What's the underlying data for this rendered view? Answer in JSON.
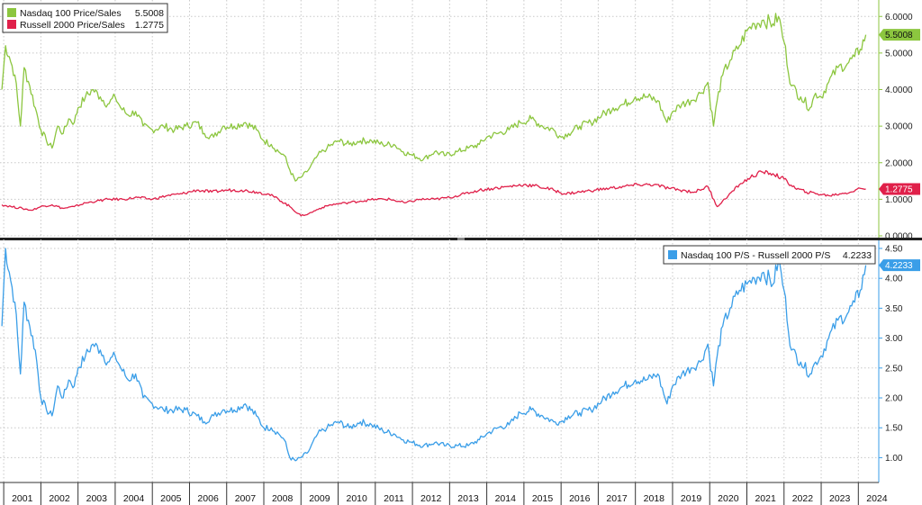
{
  "chart_data": [
    {
      "type": "line",
      "title": "",
      "ylim": [
        0,
        6.4
      ],
      "y_ticks": [
        "0.0000",
        "1.0000",
        "2.0000",
        "3.0000",
        "4.0000",
        "5.0000",
        "6.0000"
      ],
      "y_tick_values": [
        0,
        1,
        2,
        3,
        4,
        5,
        6
      ],
      "grid": true,
      "legend_placement": "top-left",
      "series": [
        {
          "name": "Nasdaq 100 Price/Sales",
          "legend_value": "5.5008",
          "last_label": "5.5008",
          "color": "#8cc63f",
          "x": [
            2000.95,
            2001.05,
            2001.15,
            2001.3,
            2001.45,
            2001.55,
            2001.7,
            2001.85,
            2002.0,
            2002.15,
            2002.3,
            2002.45,
            2002.6,
            2002.75,
            2002.9,
            2003.0,
            2003.2,
            2003.4,
            2003.6,
            2003.8,
            2004.0,
            2004.15,
            2004.35,
            2004.55,
            2004.75,
            2005.0,
            2005.3,
            2005.6,
            2005.9,
            2006.2,
            2006.4,
            2006.65,
            2006.9,
            2007.2,
            2007.5,
            2007.8,
            2008.0,
            2008.2,
            2008.4,
            2008.55,
            2008.7,
            2008.85,
            2009.0,
            2009.2,
            2009.45,
            2009.7,
            2010.0,
            2010.3,
            2010.6,
            2010.9,
            2011.2,
            2011.5,
            2011.75,
            2012.0,
            2012.3,
            2012.6,
            2012.9,
            2013.2,
            2013.5,
            2013.8,
            2014.0,
            2014.3,
            2014.6,
            2014.9,
            2015.2,
            2015.5,
            2015.8,
            2016.0,
            2016.2,
            2016.5,
            2016.8,
            2017.1,
            2017.4,
            2017.7,
            2018.0,
            2018.3,
            2018.6,
            2018.85,
            2019.0,
            2019.25,
            2019.5,
            2019.75,
            2019.95,
            2020.1,
            2020.2,
            2020.35,
            2020.55,
            2020.8,
            2021.0,
            2021.2,
            2021.45,
            2021.7,
            2021.85,
            2022.0,
            2022.2,
            2022.45,
            2022.7,
            2022.85,
            2023.0,
            2023.2,
            2023.45,
            2023.7,
            2023.9,
            2024.05,
            2024.2
          ],
          "values": [
            4.0,
            5.2,
            4.9,
            4.4,
            3.0,
            4.6,
            4.1,
            3.5,
            2.9,
            2.6,
            2.4,
            3.0,
            2.8,
            3.2,
            3.1,
            3.5,
            3.8,
            4.0,
            3.8,
            3.6,
            3.8,
            3.5,
            3.3,
            3.4,
            3.0,
            2.9,
            3.0,
            2.9,
            3.0,
            3.1,
            2.8,
            2.7,
            3.0,
            3.0,
            3.1,
            2.9,
            2.6,
            2.5,
            2.3,
            2.2,
            1.8,
            1.5,
            1.6,
            1.8,
            2.2,
            2.4,
            2.6,
            2.5,
            2.6,
            2.6,
            2.5,
            2.5,
            2.3,
            2.2,
            2.1,
            2.3,
            2.2,
            2.3,
            2.4,
            2.5,
            2.7,
            2.8,
            2.9,
            3.1,
            3.2,
            3.0,
            2.9,
            2.7,
            2.8,
            3.0,
            3.1,
            3.3,
            3.5,
            3.6,
            3.8,
            3.8,
            3.7,
            3.1,
            3.4,
            3.6,
            3.7,
            3.9,
            4.2,
            3.0,
            3.7,
            4.4,
            4.8,
            5.2,
            5.6,
            5.8,
            5.9,
            5.8,
            6.0,
            5.3,
            4.1,
            3.8,
            3.5,
            3.9,
            3.8,
            4.2,
            4.6,
            4.7,
            4.9,
            5.1,
            5.5
          ]
        },
        {
          "name": "Russell 2000 Price/Sales",
          "legend_value": "1.2775",
          "last_label": "1.2775",
          "color": "#e0204a",
          "x": [
            2000.95,
            2001.2,
            2001.5,
            2001.75,
            2002.0,
            2002.3,
            2002.6,
            2002.9,
            2003.2,
            2003.5,
            2003.8,
            2004.2,
            2004.6,
            2005.0,
            2005.4,
            2005.8,
            2006.2,
            2006.6,
            2007.0,
            2007.4,
            2007.8,
            2008.1,
            2008.4,
            2008.7,
            2009.0,
            2009.2,
            2009.5,
            2009.8,
            2010.2,
            2010.6,
            2011.0,
            2011.4,
            2011.8,
            2012.2,
            2012.6,
            2013.0,
            2013.4,
            2013.8,
            2014.2,
            2014.6,
            2015.0,
            2015.4,
            2015.8,
            2016.1,
            2016.5,
            2016.9,
            2017.3,
            2017.7,
            2018.1,
            2018.5,
            2018.9,
            2019.2,
            2019.6,
            2019.95,
            2020.2,
            2020.5,
            2020.8,
            2021.1,
            2021.4,
            2021.7,
            2022.0,
            2022.3,
            2022.6,
            2022.9,
            2023.2,
            2023.5,
            2023.8,
            2024.05,
            2024.2
          ],
          "values": [
            0.85,
            0.8,
            0.75,
            0.7,
            0.8,
            0.85,
            0.75,
            0.8,
            0.9,
            0.95,
            1.0,
            1.0,
            1.05,
            1.0,
            1.1,
            1.15,
            1.25,
            1.2,
            1.25,
            1.25,
            1.2,
            1.15,
            1.0,
            0.8,
            0.55,
            0.6,
            0.75,
            0.85,
            0.9,
            0.95,
            1.0,
            1.0,
            0.9,
            1.0,
            1.0,
            1.05,
            1.15,
            1.25,
            1.3,
            1.35,
            1.4,
            1.35,
            1.25,
            1.15,
            1.2,
            1.25,
            1.3,
            1.35,
            1.4,
            1.4,
            1.3,
            1.25,
            1.2,
            1.35,
            0.8,
            1.1,
            1.4,
            1.6,
            1.75,
            1.7,
            1.55,
            1.3,
            1.2,
            1.15,
            1.1,
            1.15,
            1.2,
            1.3,
            1.28
          ]
        }
      ]
    },
    {
      "type": "line",
      "title": "",
      "ylim": [
        0.6,
        4.62
      ],
      "y_ticks": [
        "1.00",
        "1.50",
        "2.00",
        "2.50",
        "3.00",
        "3.50",
        "4.00",
        "4.50"
      ],
      "y_tick_values": [
        1.0,
        1.5,
        2.0,
        2.5,
        3.0,
        3.5,
        4.0,
        4.5
      ],
      "grid": true,
      "legend_placement": "top-right",
      "series": [
        {
          "name": "Nasdaq 100 P/S - Russell 2000 P/S",
          "legend_value": "4.2233",
          "last_label": "4.2233",
          "color": "#3a9ee8",
          "x": [
            2000.95,
            2001.05,
            2001.15,
            2001.3,
            2001.45,
            2001.55,
            2001.7,
            2001.85,
            2002.0,
            2002.15,
            2002.3,
            2002.45,
            2002.6,
            2002.75,
            2002.9,
            2003.0,
            2003.2,
            2003.4,
            2003.6,
            2003.8,
            2004.0,
            2004.15,
            2004.35,
            2004.55,
            2004.75,
            2005.0,
            2005.3,
            2005.6,
            2005.9,
            2006.2,
            2006.4,
            2006.65,
            2006.9,
            2007.2,
            2007.5,
            2007.8,
            2008.0,
            2008.2,
            2008.4,
            2008.55,
            2008.7,
            2008.85,
            2009.0,
            2009.2,
            2009.45,
            2009.7,
            2010.0,
            2010.3,
            2010.6,
            2010.9,
            2011.2,
            2011.5,
            2011.75,
            2012.0,
            2012.3,
            2012.6,
            2012.9,
            2013.2,
            2013.5,
            2013.8,
            2014.0,
            2014.3,
            2014.6,
            2014.9,
            2015.2,
            2015.5,
            2015.8,
            2016.0,
            2016.2,
            2016.5,
            2016.8,
            2017.1,
            2017.4,
            2017.7,
            2018.0,
            2018.3,
            2018.6,
            2018.85,
            2019.0,
            2019.25,
            2019.5,
            2019.75,
            2019.95,
            2020.1,
            2020.2,
            2020.35,
            2020.55,
            2020.8,
            2021.0,
            2021.2,
            2021.45,
            2021.7,
            2021.85,
            2022.0,
            2022.2,
            2022.45,
            2022.7,
            2022.85,
            2023.0,
            2023.2,
            2023.45,
            2023.7,
            2023.9,
            2024.05,
            2024.2
          ],
          "values": [
            3.2,
            4.5,
            4.1,
            3.6,
            2.4,
            3.6,
            3.2,
            2.8,
            2.0,
            1.8,
            1.7,
            2.2,
            2.0,
            2.3,
            2.2,
            2.5,
            2.7,
            2.9,
            2.8,
            2.6,
            2.7,
            2.5,
            2.3,
            2.4,
            2.0,
            1.9,
            1.8,
            1.8,
            1.8,
            1.7,
            1.6,
            1.7,
            1.8,
            1.8,
            1.9,
            1.7,
            1.5,
            1.5,
            1.4,
            1.3,
            1.0,
            0.95,
            1.0,
            1.1,
            1.4,
            1.5,
            1.6,
            1.5,
            1.6,
            1.55,
            1.45,
            1.4,
            1.3,
            1.25,
            1.2,
            1.25,
            1.2,
            1.2,
            1.2,
            1.3,
            1.4,
            1.5,
            1.55,
            1.75,
            1.8,
            1.7,
            1.6,
            1.6,
            1.7,
            1.75,
            1.8,
            1.95,
            2.1,
            2.2,
            2.3,
            2.3,
            2.4,
            1.9,
            2.2,
            2.4,
            2.5,
            2.6,
            2.9,
            2.2,
            2.7,
            3.2,
            3.5,
            3.8,
            3.9,
            4.0,
            4.1,
            3.9,
            4.3,
            3.8,
            2.8,
            2.6,
            2.4,
            2.6,
            2.7,
            3.0,
            3.3,
            3.4,
            3.6,
            3.8,
            4.22
          ]
        }
      ]
    }
  ],
  "x_axis": {
    "years": [
      "2001",
      "2002",
      "2003",
      "2004",
      "2005",
      "2006",
      "2007",
      "2008",
      "2009",
      "2010",
      "2011",
      "2012",
      "2013",
      "2014",
      "2015",
      "2016",
      "2017",
      "2018",
      "2019",
      "2020",
      "2021",
      "2022",
      "2023",
      "2024"
    ],
    "xlim": [
      2000.9,
      2024.55
    ]
  }
}
